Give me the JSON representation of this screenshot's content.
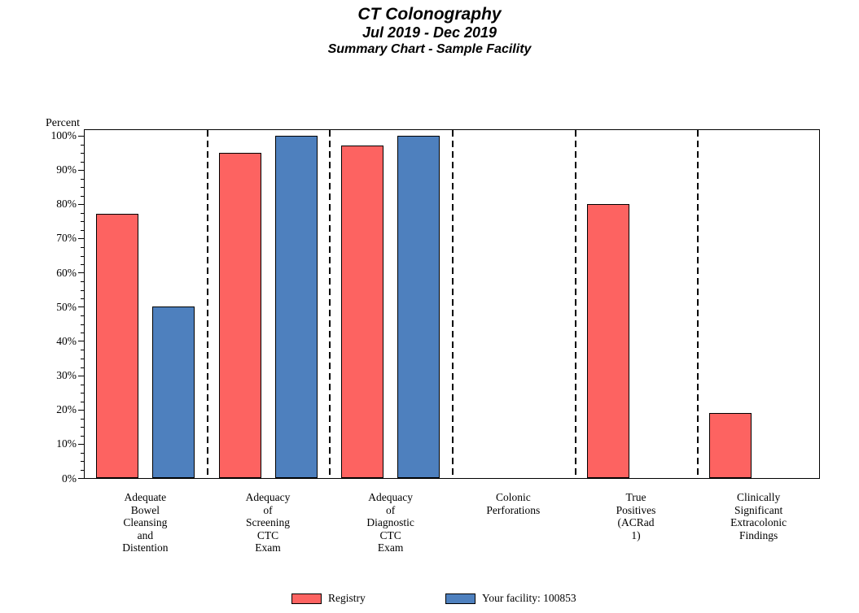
{
  "title": {
    "line1": "CT Colonography",
    "line2": "Jul 2019 - Dec 2019",
    "line3": "Summary Chart - Sample Facility"
  },
  "chart_data": {
    "type": "bar",
    "y_axis_title": "Percent",
    "ylim": [
      0,
      102
    ],
    "major_tick_step": 10,
    "minor_tick_step": 2.5,
    "tick_format": "percent",
    "grid": false,
    "group_separator_style": "dashed",
    "legend_position": "bottom",
    "categories": [
      "Adequate\nBowel\nCleansing\nand\nDistention",
      "Adequacy\nof\nScreening\nCTC\nExam",
      "Adequacy\nof\nDiagnostic\nCTC\nExam",
      "Colonic\nPerforations",
      "True\nPositives\n(ACRad\n1)",
      "Clinically\nSignificant\nExtracolonic\nFindings"
    ],
    "series": [
      {
        "name": "Registry",
        "color": "#FD6361",
        "values": [
          77,
          95,
          97,
          null,
          80,
          19
        ]
      },
      {
        "name": "Your facility: 100853",
        "color": "#4E80BE",
        "values": [
          50,
          100,
          100,
          null,
          null,
          null
        ]
      }
    ]
  },
  "colors": {
    "registry": "#FD6361",
    "facility": "#4E80BE",
    "axis": "#000000",
    "background": "#FFFFFF"
  }
}
